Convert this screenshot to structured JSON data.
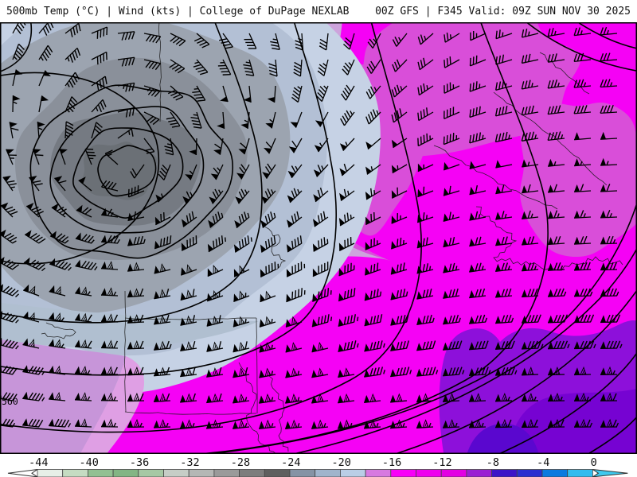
{
  "header": {
    "left_title": "500mb Temp (°C) | Wind (kts) | College of DuPage NEXLAB",
    "right_title": "00Z GFS | F345 Valid: 09Z SUN NOV 30 2025"
  },
  "map": {
    "contour_label": "560",
    "contour_color": "#000000",
    "geo_color": "#1b1b1b",
    "palette": {
      "gray_core2": "#6b7076",
      "gray_core": "#757a82",
      "gray_mid": "#8a909a",
      "gray_light": "#9ca4b0",
      "bluegray": "#b3c0d5",
      "bluegray_light": "#c6d2e5",
      "corner_bluegray": "#b0bfd0",
      "violet_light": "#cda3dc",
      "violet_pale": "#c795d9",
      "pink_band": "#df9fe4",
      "magenta_med": "#d94ed9",
      "magenta_bright": "#f502f5",
      "purple": "#8d10da",
      "purple_deep": "#7603d2",
      "indigo": "#5a07cf"
    }
  },
  "colorbar": {
    "tick_labels": [
      "-44",
      "-40",
      "-36",
      "-32",
      "-28",
      "-24",
      "-20",
      "-16",
      "-12",
      "-8",
      "-4",
      "0"
    ],
    "segment_colors": [
      "#e7efe7",
      "#c5dcc2",
      "#93c092",
      "#83b584",
      "#a6c8a4",
      "#c6cdc6",
      "#b5b7b5",
      "#9a9a9a",
      "#7d7d7d",
      "#5f5f5f",
      "#8593a5",
      "#a0b4cc",
      "#bacee6",
      "#d77ae0",
      "#f800f8",
      "#ee00ee",
      "#e300e3",
      "#9b1fd3",
      "#3c14c8",
      "#2a2fd0",
      "#0b7adf",
      "#30bcee"
    ],
    "left_arrow_color": "#ffffff",
    "right_arrow_color": "#3ec9ee",
    "label_color": "#111111"
  },
  "chart_data": {
    "type": "heatmap",
    "title": "500mb Temp (°C) | Wind (kts)",
    "source": "College of DuPage NEXLAB",
    "model": "GFS",
    "cycle": "00Z",
    "forecast_hour": "F345",
    "valid": "09Z SUN NOV 30 2025",
    "temp_scale_edges_c": [
      -44,
      -42,
      -40,
      -38,
      -36,
      -34,
      -32,
      -30,
      -28,
      -26,
      -24,
      -22,
      -20,
      -18,
      -16,
      -14,
      -12,
      -10,
      -8,
      -6,
      -4,
      -2,
      0
    ],
    "temp_scale_colors": [
      "#e7efe7",
      "#c5dcc2",
      "#93c092",
      "#83b584",
      "#a6c8a4",
      "#c6cdc6",
      "#b5b7b5",
      "#9a9a9a",
      "#7d7d7d",
      "#5f5f5f",
      "#8593a5",
      "#a0b4cc",
      "#bacee6",
      "#d77ae0",
      "#f800f8",
      "#ee00ee",
      "#e300e3",
      "#9b1fd3",
      "#3c14c8",
      "#2a2fd0",
      "#0b7adf",
      "#30bcee"
    ],
    "legend_axis_ticks_c": [
      -44,
      -40,
      -36,
      -32,
      -28,
      -24,
      -20,
      -16,
      -12,
      -8,
      -4,
      0
    ],
    "depicted": "Closed cold 500mb low (core near -28 to -26°C, gray shades) in the upper-left with cyclonic wind barbs; broad -18 to -10°C magenta air mass over the east; warmer -10 to -6°C purple pocket in the lower right; strong 50-150kt west-southwest flow (pennant barbs) across the south and east."
  }
}
